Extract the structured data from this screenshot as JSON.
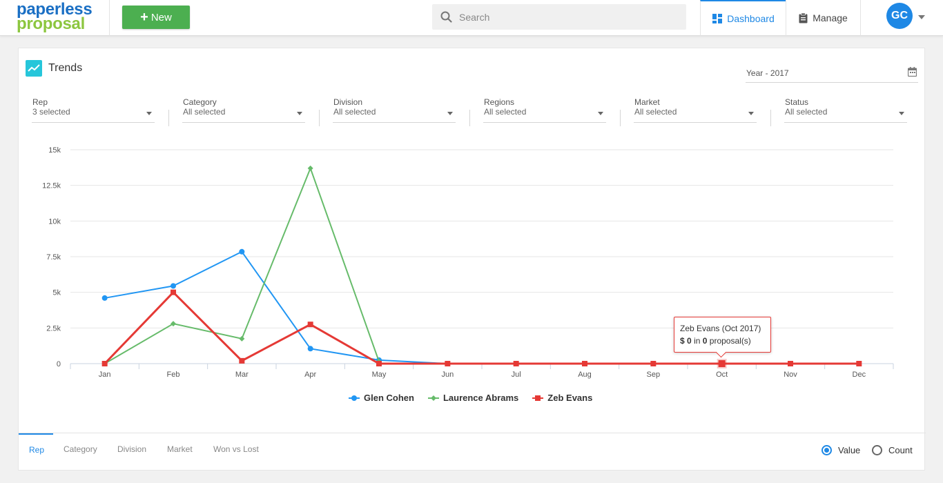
{
  "header": {
    "logo_line1": "paperless",
    "logo_line2": "proposal",
    "new_button": "New",
    "search_placeholder": "Search",
    "nav": {
      "dashboard": "Dashboard",
      "manage": "Manage"
    },
    "avatar_initials": "GC"
  },
  "card": {
    "title": "Trends",
    "year": "Year - 2017",
    "filters": [
      {
        "label": "Rep",
        "value": "3 selected"
      },
      {
        "label": "Category",
        "value": "All selected"
      },
      {
        "label": "Division",
        "value": "All selected"
      },
      {
        "label": "Regions",
        "value": "All selected"
      },
      {
        "label": "Market",
        "value": "All selected"
      },
      {
        "label": "Status",
        "value": "All selected"
      }
    ]
  },
  "tooltip": {
    "title": "Zeb Evans (Oct 2017)",
    "currency": "$",
    "amount": "0",
    "mid": "in",
    "count": "0",
    "suffix": "proposal(s)"
  },
  "bottom_tabs": [
    "Rep",
    "Category",
    "Division",
    "Market",
    "Won vs Lost"
  ],
  "radios": {
    "value": "Value",
    "count": "Count",
    "selected": "value"
  },
  "colors": {
    "glen": "#2196f3",
    "laurence": "#66bb6a",
    "zeb": "#e53935",
    "accent": "#1e88e5"
  },
  "chart_data": {
    "type": "line",
    "categories": [
      "Jan",
      "Feb",
      "Mar",
      "Apr",
      "May",
      "Jun",
      "Jul",
      "Aug",
      "Sep",
      "Oct",
      "Nov",
      "Dec"
    ],
    "yticks": [
      "0",
      "2.5k",
      "5k",
      "7.5k",
      "10k",
      "12.5k",
      "15k"
    ],
    "ylim": [
      0,
      15000
    ],
    "grid": true,
    "legend_position": "bottom",
    "series": [
      {
        "name": "Glen Cohen",
        "marker": "circle",
        "values": [
          4600,
          5450,
          7850,
          1050,
          250,
          0,
          null,
          null,
          null,
          null,
          null,
          null
        ]
      },
      {
        "name": "Laurence Abrams",
        "marker": "diamond",
        "values": [
          0,
          2800,
          1750,
          13700,
          150,
          null,
          null,
          null,
          null,
          null,
          null,
          null
        ]
      },
      {
        "name": "Zeb Evans",
        "marker": "square",
        "values": [
          0,
          5000,
          200,
          2750,
          0,
          0,
          0,
          0,
          0,
          0,
          0,
          0
        ]
      }
    ]
  }
}
